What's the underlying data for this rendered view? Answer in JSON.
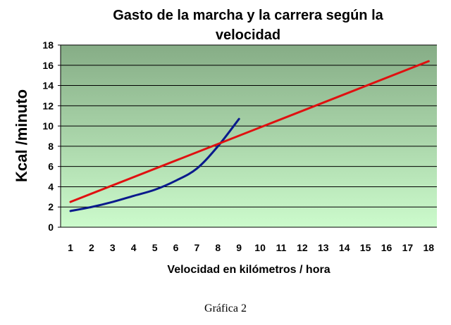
{
  "chart_data": {
    "type": "line",
    "title_lines": [
      "Gasto de la marcha y la carrera según la",
      "velocidad"
    ],
    "xlabel": "Velocidad en kilómetros / hora",
    "ylabel": "Kcal /minuto",
    "x_ticks": [
      1,
      2,
      3,
      4,
      5,
      6,
      7,
      8,
      9,
      10,
      11,
      12,
      13,
      14,
      15,
      16,
      17,
      18
    ],
    "y_ticks": [
      0,
      2,
      4,
      6,
      8,
      10,
      12,
      14,
      16,
      18
    ],
    "ylim": [
      0,
      18
    ],
    "grid": true,
    "background": {
      "top": "#86ad86",
      "bottom": "#ccfbcc"
    },
    "series": [
      {
        "color": "#0a1a8c",
        "x": [
          1,
          2,
          3,
          4,
          5,
          6,
          7,
          8,
          9
        ],
        "y": [
          1.6,
          2.0,
          2.5,
          3.1,
          3.7,
          4.6,
          5.8,
          8.0,
          10.7
        ]
      },
      {
        "color": "#e01010",
        "x": [
          1,
          18
        ],
        "y": [
          2.5,
          16.4
        ]
      }
    ]
  },
  "caption": "Gráfica 2"
}
